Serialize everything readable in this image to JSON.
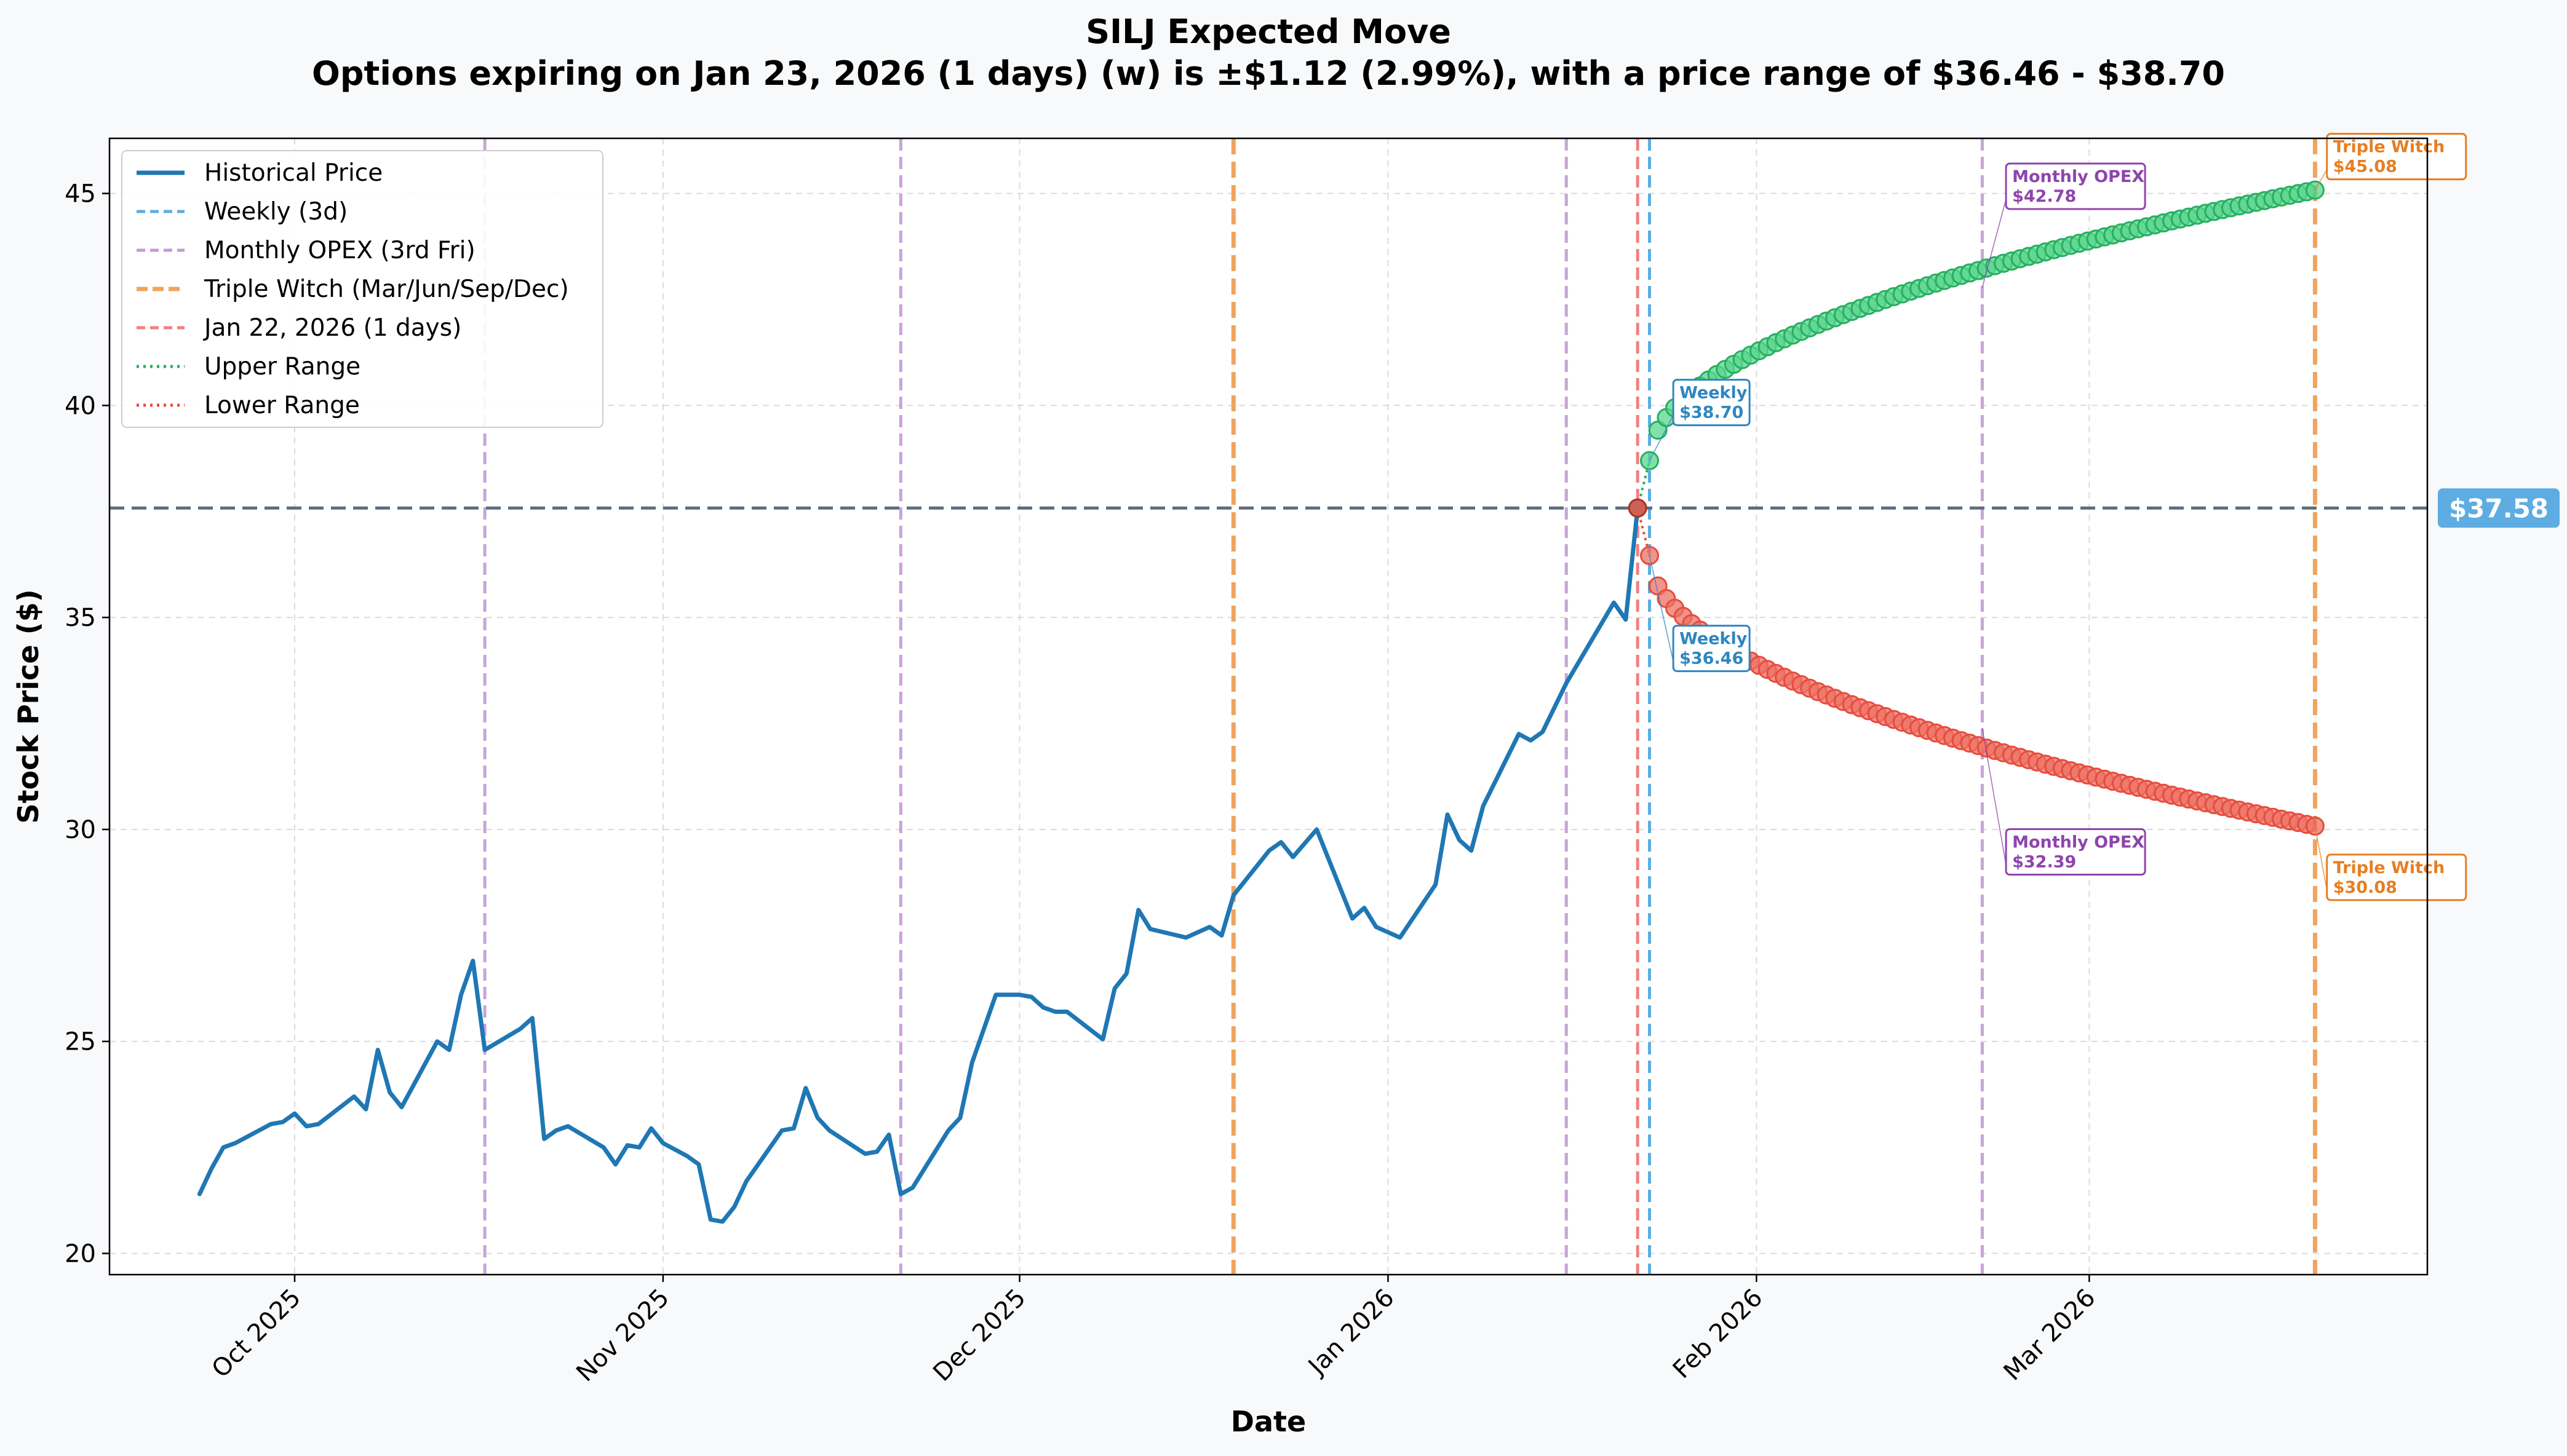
{
  "chart_data": {
    "type": "line",
    "title": "SILJ Expected Move",
    "subtitle": "Options expiring on Jan 23, 2026 (1 days) (w) is ±$1.12 (2.99%), with a price range of $36.46 - $38.70",
    "xlabel": "Date",
    "ylabel": "Stock Price ($)",
    "ylim": [
      19.5,
      46.3
    ],
    "yticks": [
      20,
      25,
      30,
      35,
      40,
      45
    ],
    "xticks": [
      {
        "label": "Oct 2025",
        "date": "2025-10-01"
      },
      {
        "label": "Nov 2025",
        "date": "2025-11-01"
      },
      {
        "label": "Dec 2025",
        "date": "2025-12-01"
      },
      {
        "label": "Jan 2026",
        "date": "2026-01-01"
      },
      {
        "label": "Feb 2026",
        "date": "2026-02-01"
      },
      {
        "label": "Mar 2026",
        "date": "2026-03-01"
      }
    ],
    "grid": true,
    "legend_position": "upper-left",
    "current_price": 37.58,
    "current_price_label": "$37.58",
    "legend": [
      {
        "label": "Historical Price",
        "color": "#1f77b4",
        "style": "solid"
      },
      {
        "label": "Weekly (3d)",
        "color": "#5dade2",
        "style": "dashed"
      },
      {
        "label": "Monthly OPEX (3rd Fri)",
        "color": "#c39bd3",
        "style": "dashed"
      },
      {
        "label": "Triple Witch (Mar/Jun/Sep/Dec)",
        "color": "#f0a35e",
        "style": "dashed-thick"
      },
      {
        "label": "Jan 22, 2026 (1 days)",
        "color": "#f08080",
        "style": "dashed"
      },
      {
        "label": "Upper Range",
        "color": "#27ae60",
        "style": "dotted"
      },
      {
        "label": "Lower Range",
        "color": "#e74c3c",
        "style": "dotted"
      }
    ],
    "vertical_lines": [
      {
        "date": "2025-10-17",
        "kind": "monthly",
        "color": "#c39bd3"
      },
      {
        "date": "2025-11-21",
        "kind": "monthly",
        "color": "#c39bd3"
      },
      {
        "date": "2025-12-19",
        "kind": "triple",
        "color": "#f0a35e"
      },
      {
        "date": "2026-01-16",
        "kind": "monthly",
        "color": "#c39bd3"
      },
      {
        "date": "2026-01-22",
        "kind": "current",
        "color": "#f08080"
      },
      {
        "date": "2026-01-23",
        "kind": "weekly",
        "color": "#5dade2"
      },
      {
        "date": "2026-02-20",
        "kind": "monthly",
        "color": "#c39bd3"
      },
      {
        "date": "2026-03-20",
        "kind": "triple",
        "color": "#f0a35e"
      }
    ],
    "historical": {
      "name": "Historical Price",
      "color": "#1f77b4",
      "points": [
        [
          "2025-09-23",
          21.4
        ],
        [
          "2025-09-24",
          22.0
        ],
        [
          "2025-09-25",
          22.5
        ],
        [
          "2025-09-26",
          22.6
        ],
        [
          "2025-09-29",
          23.05
        ],
        [
          "2025-09-30",
          23.1
        ],
        [
          "2025-10-01",
          23.3
        ],
        [
          "2025-10-02",
          23.0
        ],
        [
          "2025-10-03",
          23.05
        ],
        [
          "2025-10-06",
          23.7
        ],
        [
          "2025-10-07",
          23.4
        ],
        [
          "2025-10-08",
          24.8
        ],
        [
          "2025-10-09",
          23.8
        ],
        [
          "2025-10-10",
          23.45
        ],
        [
          "2025-10-13",
          25.0
        ],
        [
          "2025-10-14",
          24.8
        ],
        [
          "2025-10-15",
          26.1
        ],
        [
          "2025-10-16",
          26.9
        ],
        [
          "2025-10-17",
          24.8
        ],
        [
          "2025-10-20",
          25.3
        ],
        [
          "2025-10-21",
          25.55
        ],
        [
          "2025-10-22",
          22.7
        ],
        [
          "2025-10-23",
          22.9
        ],
        [
          "2025-10-24",
          23.0
        ],
        [
          "2025-10-27",
          22.5
        ],
        [
          "2025-10-28",
          22.1
        ],
        [
          "2025-10-29",
          22.55
        ],
        [
          "2025-10-30",
          22.5
        ],
        [
          "2025-10-31",
          22.95
        ],
        [
          "2025-11-01",
          22.6
        ],
        [
          "2025-11-03",
          22.3
        ],
        [
          "2025-11-04",
          22.1
        ],
        [
          "2025-11-05",
          20.8
        ],
        [
          "2025-11-06",
          20.75
        ],
        [
          "2025-11-07",
          21.1
        ],
        [
          "2025-11-08",
          21.7
        ],
        [
          "2025-11-11",
          22.9
        ],
        [
          "2025-11-12",
          22.95
        ],
        [
          "2025-11-13",
          23.9
        ],
        [
          "2025-11-14",
          23.2
        ],
        [
          "2025-11-15",
          22.9
        ],
        [
          "2025-11-18",
          22.35
        ],
        [
          "2025-11-19",
          22.4
        ],
        [
          "2025-11-20",
          22.8
        ],
        [
          "2025-11-21",
          21.4
        ],
        [
          "2025-11-22",
          21.55
        ],
        [
          "2025-11-25",
          22.9
        ],
        [
          "2025-11-26",
          23.2
        ],
        [
          "2025-11-27",
          24.5
        ],
        [
          "2025-11-29",
          26.1
        ],
        [
          "2025-12-01",
          26.1
        ],
        [
          "2025-12-02",
          26.05
        ],
        [
          "2025-12-03",
          25.8
        ],
        [
          "2025-12-04",
          25.7
        ],
        [
          "2025-12-05",
          25.7
        ],
        [
          "2025-12-08",
          25.05
        ],
        [
          "2025-12-09",
          26.25
        ],
        [
          "2025-12-10",
          26.6
        ],
        [
          "2025-12-11",
          28.1
        ],
        [
          "2025-12-12",
          27.65
        ],
        [
          "2025-12-15",
          27.45
        ],
        [
          "2025-12-17",
          27.7
        ],
        [
          "2025-12-18",
          27.5
        ],
        [
          "2025-12-19",
          28.45
        ],
        [
          "2025-12-22",
          29.5
        ],
        [
          "2025-12-23",
          29.7
        ],
        [
          "2025-12-24",
          29.35
        ],
        [
          "2025-12-26",
          30.0
        ],
        [
          "2025-12-29",
          27.9
        ],
        [
          "2025-12-30",
          28.15
        ],
        [
          "2025-12-31",
          27.7
        ],
        [
          "2026-01-02",
          27.45
        ],
        [
          "2026-01-05",
          28.7
        ],
        [
          "2026-01-06",
          30.35
        ],
        [
          "2026-01-07",
          29.75
        ],
        [
          "2026-01-08",
          29.5
        ],
        [
          "2026-01-09",
          30.55
        ],
        [
          "2026-01-12",
          32.25
        ],
        [
          "2026-01-13",
          32.1
        ],
        [
          "2026-01-14",
          32.3
        ],
        [
          "2026-01-16",
          33.45
        ],
        [
          "2026-01-20",
          35.35
        ],
        [
          "2026-01-21",
          34.95
        ],
        [
          "2026-01-22",
          37.58
        ]
      ]
    },
    "upper_range": {
      "name": "Upper Range",
      "color": "#27ae60",
      "start": "2026-01-23",
      "end": "2026-03-20",
      "start_value": 38.7,
      "end_value": 45.08,
      "count": 80
    },
    "lower_range": {
      "name": "Lower Range",
      "color": "#e74c3c",
      "start": "2026-01-23",
      "end": "2026-03-20",
      "start_value": 36.46,
      "end_value": 30.08,
      "count": 80
    },
    "annotations": [
      {
        "date": "2026-01-23",
        "value": 38.7,
        "title": "Weekly",
        "price": "$38.70",
        "color": "#2e86c1",
        "target_date": "2026-01-25",
        "target_value": 40.2
      },
      {
        "date": "2026-01-23",
        "value": 36.46,
        "title": "Weekly",
        "price": "$36.46",
        "color": "#2e86c1",
        "target_date": "2026-01-25",
        "target_value": 34.4
      },
      {
        "date": "2026-02-20",
        "value": 42.78,
        "title": "Monthly OPEX",
        "price": "$42.78",
        "color": "#8e44ad",
        "target_date": "2026-02-22",
        "target_value": 45.3
      },
      {
        "date": "2026-02-20",
        "value": 32.39,
        "title": "Monthly OPEX",
        "price": "$32.39",
        "color": "#8e44ad",
        "target_date": "2026-02-22",
        "target_value": 29.6
      },
      {
        "date": "2026-03-20",
        "value": 45.08,
        "title": "Triple Witch",
        "price": "$45.08",
        "color": "#e67e22",
        "target_date": "2026-03-21",
        "target_value": 46.0
      },
      {
        "date": "2026-03-20",
        "value": 30.08,
        "title": "Triple Witch",
        "price": "$30.08",
        "color": "#e67e22",
        "target_date": "2026-03-21",
        "target_value": 29.0
      }
    ]
  }
}
